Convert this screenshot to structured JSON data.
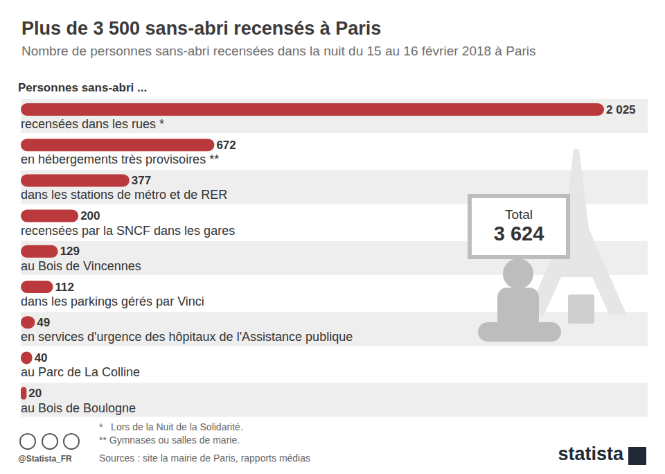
{
  "chart_data": {
    "type": "bar",
    "title": "Plus de 3 500 sans-abri recensés à Paris",
    "subtitle": "Nombre de personnes sans-abri recensées dans la nuit du 15 au 16 février 2018 à Paris",
    "header": "Personnes sans-abri ...",
    "categories": [
      "recensées dans les rues *",
      "en hébergements très provisoires **",
      "dans les stations de métro et de RER",
      "recensées par la SNCF dans les gares",
      "au Bois de Vincennes",
      "dans les parkings gérés par Vinci",
      "en services d'urgence des hôpitaux de l'Assistance publique",
      "au Parc de La Colline",
      "au Bois de Boulogne"
    ],
    "values": [
      2025,
      672,
      377,
      200,
      129,
      112,
      49,
      40,
      20
    ],
    "value_labels": [
      "2 025",
      "672",
      "377",
      "200",
      "129",
      "112",
      "49",
      "40",
      "20"
    ],
    "color": "#b9393c",
    "orientation": "horizontal",
    "data_labels": true,
    "tick_labels": false,
    "grid": false,
    "xlim": [
      0,
      2025
    ],
    "total": {
      "title": "Total",
      "value": 3624,
      "label": "3 624"
    },
    "footnotes": [
      "*   Lors de la Nuit de la Solidarité.",
      "** Gymnases ou salles de marie."
    ],
    "source": "Sources : site la mairie de Paris, rapports médias",
    "credit": "@Statista_FR",
    "brand": "statista"
  }
}
